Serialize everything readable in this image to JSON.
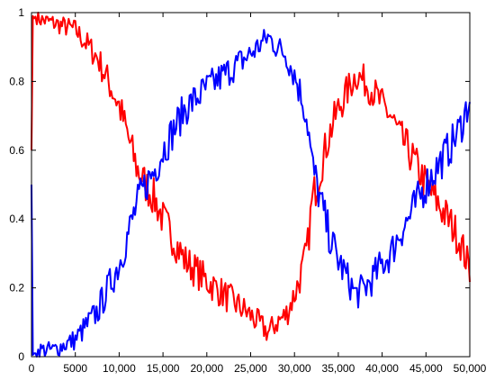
{
  "chart_data": {
    "type": "line",
    "title": "",
    "xlabel": "",
    "ylabel": "",
    "xlim": [
      0,
      50000
    ],
    "ylim": [
      0,
      1
    ],
    "x_ticks": [
      0,
      5000,
      10000,
      15000,
      20000,
      25000,
      30000,
      35000,
      40000,
      45000,
      50000
    ],
    "x_tick_labels": [
      "0",
      "5000",
      "10,000",
      "15,000",
      "20,000",
      "25,000",
      "30,000",
      "35,000",
      "40,000",
      "45,000",
      "50,000"
    ],
    "y_ticks": [
      0,
      0.2,
      0.4,
      0.6,
      0.8,
      1
    ],
    "y_tick_labels": [
      "0",
      "0.2",
      "0.4",
      "0.6",
      "0.8",
      "1"
    ],
    "grid": false,
    "series": [
      {
        "color": "#ff0000",
        "x": [
          0,
          100,
          200,
          500,
          1000,
          2500,
          5000,
          7500,
          10000,
          12000,
          13000,
          14000,
          15000,
          17500,
          20000,
          22500,
          25000,
          27000,
          28000,
          29000,
          30000,
          31000,
          31500,
          32000,
          33000,
          34000,
          35000,
          36000,
          37000,
          38000,
          39000,
          40000,
          41000,
          42000,
          43000,
          44000,
          45000,
          46000,
          47000,
          48000,
          49000,
          50000
        ],
        "y": [
          0.6,
          1.0,
          0.98,
          0.99,
          0.98,
          0.97,
          0.95,
          0.87,
          0.73,
          0.55,
          0.5,
          0.46,
          0.4,
          0.28,
          0.22,
          0.17,
          0.12,
          0.07,
          0.1,
          0.12,
          0.18,
          0.26,
          0.32,
          0.45,
          0.55,
          0.65,
          0.72,
          0.77,
          0.82,
          0.8,
          0.77,
          0.73,
          0.7,
          0.64,
          0.6,
          0.55,
          0.5,
          0.46,
          0.42,
          0.38,
          0.33,
          0.25
        ]
      },
      {
        "color": "#0000ff",
        "x": [
          0,
          100,
          200,
          500,
          1000,
          2500,
          5000,
          7500,
          10000,
          12000,
          13000,
          14000,
          15000,
          17500,
          20000,
          22500,
          25000,
          27000,
          28000,
          29000,
          30000,
          31000,
          31500,
          32000,
          33000,
          34000,
          35000,
          36000,
          37000,
          38000,
          39000,
          40000,
          41000,
          42000,
          43000,
          44000,
          45000,
          46000,
          47000,
          48000,
          49000,
          50000
        ],
        "y": [
          0.5,
          0.0,
          0.01,
          0.01,
          0.02,
          0.02,
          0.05,
          0.13,
          0.27,
          0.44,
          0.5,
          0.54,
          0.6,
          0.72,
          0.78,
          0.83,
          0.88,
          0.93,
          0.9,
          0.88,
          0.82,
          0.74,
          0.68,
          0.56,
          0.45,
          0.35,
          0.28,
          0.23,
          0.18,
          0.2,
          0.23,
          0.27,
          0.3,
          0.36,
          0.4,
          0.45,
          0.5,
          0.54,
          0.58,
          0.62,
          0.67,
          0.75
        ]
      }
    ]
  }
}
